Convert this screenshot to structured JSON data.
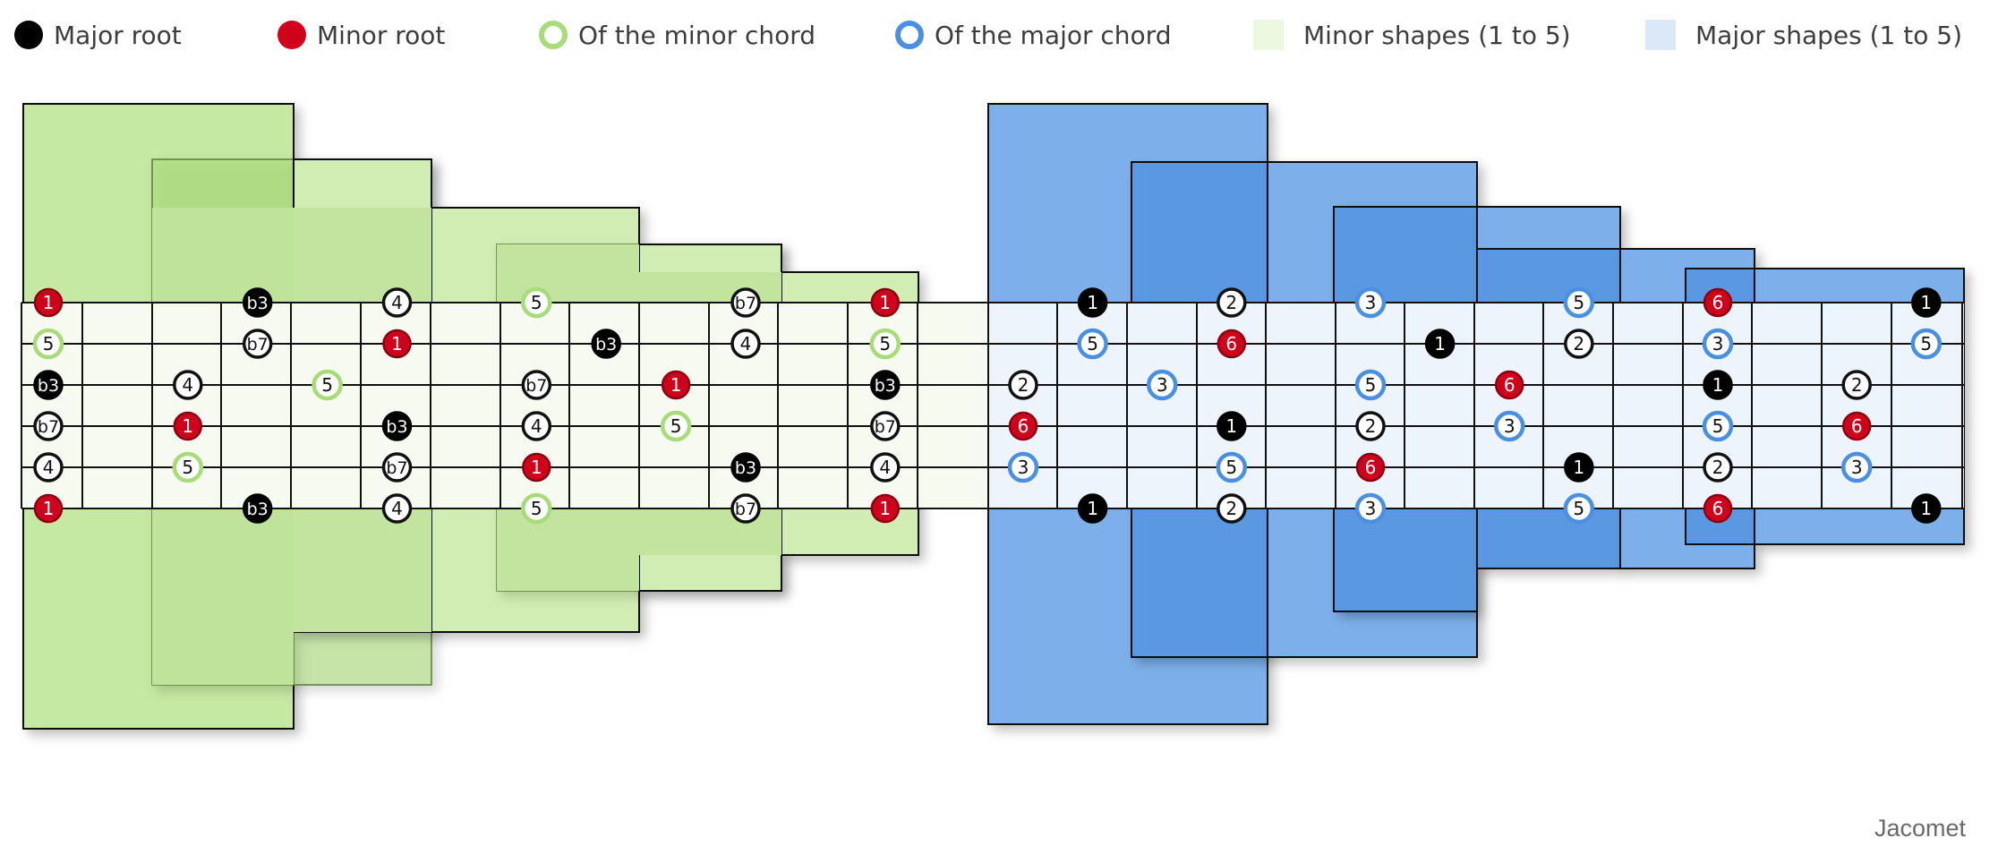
{
  "legend": {
    "major_root": "Major root",
    "minor_root": "Minor root",
    "minor_chord": "Of the minor chord",
    "major_chord": "Of the major chord",
    "minor_shapes": "Minor shapes (1 to 5)",
    "major_shapes": "Major shapes (1 to 5)"
  },
  "credit": "Jacomet",
  "colors": {
    "major_root": "#000000",
    "minor_root": "#d0021b",
    "minor_ring": "#a8dc78",
    "major_ring": "#4a90e2",
    "minor_swatch": "#edf8e2",
    "major_swatch": "#dbe8f7",
    "minor_fret_bg": "#f6faf0",
    "major_fret_bg": "#eef4fc"
  },
  "minor_notes": [
    [
      0,
      0,
      "minor_root",
      "1"
    ],
    [
      1,
      0,
      "minor_ring",
      "5"
    ],
    [
      2,
      0,
      "major_root",
      "b3"
    ],
    [
      3,
      0,
      "black_ring",
      "b7"
    ],
    [
      4,
      0,
      "black_ring",
      "4"
    ],
    [
      5,
      0,
      "minor_root",
      "1"
    ],
    [
      2,
      2,
      "black_ring",
      "4"
    ],
    [
      3,
      2,
      "minor_root",
      "1"
    ],
    [
      4,
      2,
      "minor_ring",
      "5"
    ],
    [
      0,
      3,
      "major_root",
      "b3"
    ],
    [
      1,
      3,
      "black_ring",
      "b7"
    ],
    [
      5,
      3,
      "major_root",
      "b3"
    ],
    [
      2,
      4,
      "minor_ring",
      "5"
    ],
    [
      0,
      5,
      "black_ring",
      "4"
    ],
    [
      1,
      5,
      "minor_root",
      "1"
    ],
    [
      3,
      5,
      "major_root",
      "b3"
    ],
    [
      4,
      5,
      "black_ring",
      "b7"
    ],
    [
      5,
      5,
      "black_ring",
      "4"
    ],
    [
      0,
      7,
      "minor_ring",
      "5"
    ],
    [
      2,
      7,
      "black_ring",
      "b7"
    ],
    [
      3,
      7,
      "black_ring",
      "4"
    ],
    [
      4,
      7,
      "minor_root",
      "1"
    ],
    [
      5,
      7,
      "minor_ring",
      "5"
    ],
    [
      1,
      8,
      "major_root",
      "b3"
    ],
    [
      2,
      9,
      "minor_root",
      "1"
    ],
    [
      3,
      9,
      "minor_ring",
      "5"
    ],
    [
      0,
      10,
      "black_ring",
      "b7"
    ],
    [
      1,
      10,
      "black_ring",
      "4"
    ],
    [
      4,
      10,
      "major_root",
      "b3"
    ],
    [
      5,
      10,
      "black_ring",
      "b7"
    ],
    [
      0,
      12,
      "minor_root",
      "1"
    ],
    [
      1,
      12,
      "minor_ring",
      "5"
    ],
    [
      2,
      12,
      "major_root",
      "b3"
    ],
    [
      3,
      12,
      "black_ring",
      "b7"
    ],
    [
      4,
      12,
      "black_ring",
      "4"
    ],
    [
      5,
      12,
      "minor_root",
      "1"
    ]
  ],
  "major_notes": [
    [
      2,
      0,
      "black_ring",
      "2"
    ],
    [
      3,
      0,
      "minor_root",
      "6"
    ],
    [
      4,
      0,
      "major_ring",
      "3"
    ],
    [
      0,
      1,
      "major_root",
      "1"
    ],
    [
      1,
      1,
      "major_ring",
      "5"
    ],
    [
      5,
      1,
      "major_root",
      "1"
    ],
    [
      2,
      2,
      "major_ring",
      "3"
    ],
    [
      0,
      3,
      "black_ring",
      "2"
    ],
    [
      1,
      3,
      "minor_root",
      "6"
    ],
    [
      3,
      3,
      "major_root",
      "1"
    ],
    [
      4,
      3,
      "major_ring",
      "5"
    ],
    [
      5,
      3,
      "black_ring",
      "2"
    ],
    [
      0,
      5,
      "major_ring",
      "3"
    ],
    [
      2,
      5,
      "major_ring",
      "5"
    ],
    [
      3,
      5,
      "black_ring",
      "2"
    ],
    [
      4,
      5,
      "minor_root",
      "6"
    ],
    [
      5,
      5,
      "major_ring",
      "3"
    ],
    [
      1,
      6,
      "major_root",
      "1"
    ],
    [
      2,
      7,
      "minor_root",
      "6"
    ],
    [
      3,
      7,
      "major_ring",
      "3"
    ],
    [
      0,
      8,
      "major_ring",
      "5"
    ],
    [
      1,
      8,
      "black_ring",
      "2"
    ],
    [
      4,
      8,
      "major_root",
      "1"
    ],
    [
      5,
      8,
      "major_ring",
      "5"
    ],
    [
      0,
      10,
      "minor_root",
      "6"
    ],
    [
      1,
      10,
      "major_ring",
      "3"
    ],
    [
      2,
      10,
      "major_root",
      "1"
    ],
    [
      3,
      10,
      "major_ring",
      "5"
    ],
    [
      4,
      10,
      "black_ring",
      "2"
    ],
    [
      5,
      10,
      "minor_root",
      "6"
    ],
    [
      2,
      12,
      "black_ring",
      "2"
    ],
    [
      3,
      12,
      "minor_root",
      "6"
    ],
    [
      4,
      12,
      "major_ring",
      "3"
    ],
    [
      0,
      13,
      "major_root",
      "1"
    ],
    [
      1,
      13,
      "major_ring",
      "5"
    ],
    [
      5,
      13,
      "major_root",
      "1"
    ]
  ]
}
